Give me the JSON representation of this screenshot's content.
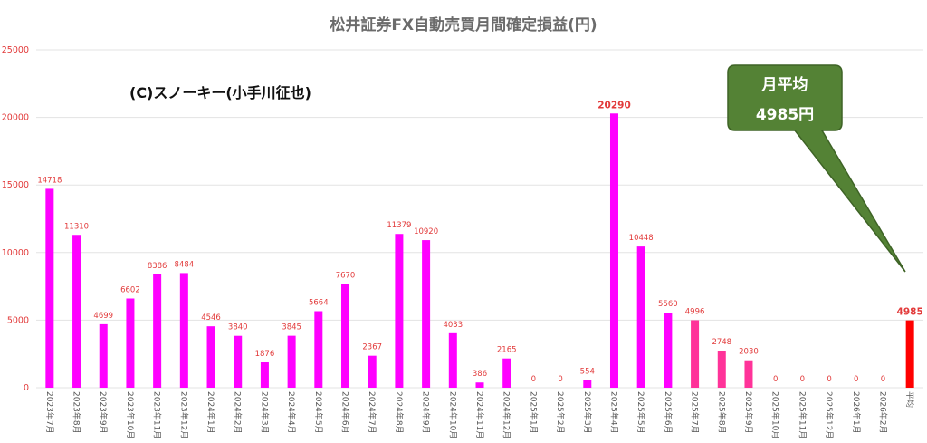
{
  "chart_data": {
    "type": "bar",
    "title": "松井証券FX自動売買月間確定損益(円)",
    "watermark": "(C)スノーキー(小手川征也)",
    "ylim": [
      0,
      25000
    ],
    "yticks": [
      0,
      5000,
      10000,
      15000,
      20000,
      25000
    ],
    "grid": true,
    "categories": [
      "2023年7月",
      "2023年8月",
      "2023年9月",
      "2023年10月",
      "2023年11月",
      "2023年12月",
      "2024年1月",
      "2024年2月",
      "2024年3月",
      "2024年4月",
      "2024年5月",
      "2024年6月",
      "2024年7月",
      "2024年8月",
      "2024年9月",
      "2024年10月",
      "2024年11月",
      "2024年12月",
      "2025年1月",
      "2025年2月",
      "2025年3月",
      "2025年4月",
      "2025年5月",
      "2025年6月",
      "2025年7月",
      "2025年8月",
      "2025年9月",
      "2025年10月",
      "2025年11月",
      "2025年12月",
      "2026年1月",
      "2026年2月",
      "平均"
    ],
    "values": [
      14718,
      11310,
      4699,
      6602,
      8386,
      8484,
      4546,
      3840,
      1876,
      3845,
      5664,
      7670,
      2367,
      11379,
      10920,
      4033,
      386,
      2165,
      0,
      0,
      554,
      20290,
      10448,
      5560,
      4996,
      2748,
      2030,
      0,
      0,
      0,
      0,
      0,
      4985
    ],
    "colors": {
      "default": "#ff00ff",
      "recent": "#ff3399",
      "average": "#ff0000",
      "label": "#e23a3a",
      "callout_fill": "#548235",
      "callout_stroke": "#3e6326"
    },
    "recent_range": [
      24,
      26
    ],
    "average_index": 32,
    "highlight_labels": [
      21,
      32
    ],
    "callout": {
      "line1": "月平均",
      "line2": "4985円"
    }
  }
}
